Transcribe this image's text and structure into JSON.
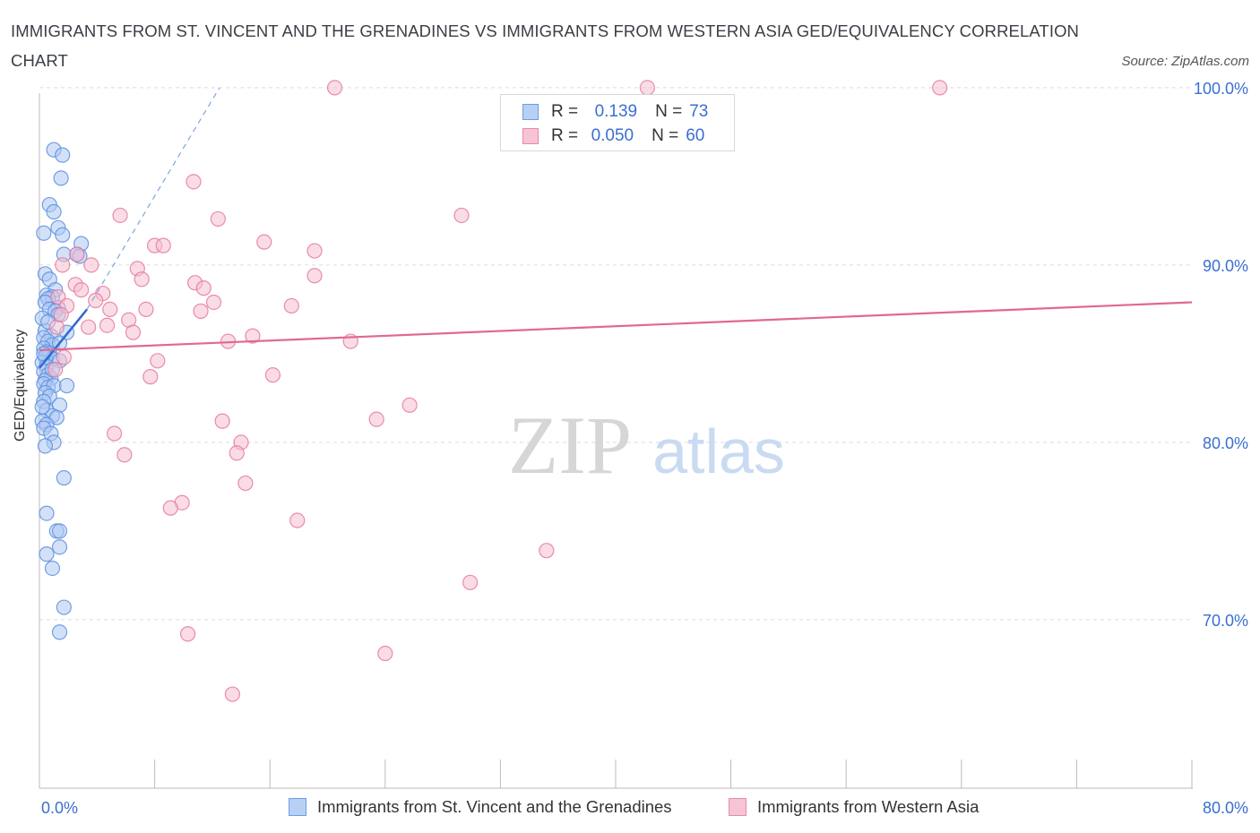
{
  "title": "IMMIGRANTS FROM ST. VINCENT AND THE GRENADINES VS IMMIGRANTS FROM WESTERN ASIA GED/EQUIVALENCY CORRELATION CHART",
  "source": "Source: ZipAtlas.com",
  "watermark": {
    "zip": "ZIP",
    "atlas": "atlas"
  },
  "legend": {
    "r_label": "R =",
    "n_label": "N =",
    "rows": [
      {
        "r": "0.139",
        "n": "73",
        "color": "#6a9ee8",
        "fill": "#b8d0f4"
      },
      {
        "r": "0.050",
        "n": "60",
        "color": "#e78aa8",
        "fill": "#f7c4d4"
      }
    ]
  },
  "chart_data": {
    "type": "scatter",
    "ylabel": "GED/Equivalency",
    "xlim": [
      0,
      80
    ],
    "ylim": [
      60.5,
      100.5
    ],
    "y_ticks": [
      70,
      80,
      90,
      100
    ],
    "y_tick_labels": [
      "70.0%",
      "80.0%",
      "90.0%",
      "100.0%"
    ],
    "x_tick_labels": [
      "0.0%",
      "80.0%"
    ],
    "legend_position": "bottom",
    "series": [
      {
        "name": "Immigrants from St. Vincent and the Grenadines",
        "color": "#5b8fe0",
        "fill": "#aec8f2",
        "trend": {
          "x": [
            0,
            3.3
          ],
          "y": [
            84.2,
            87.5
          ],
          "dashed_extension": {
            "x": [
              3.3,
              12.5
            ],
            "y": [
              87.5,
              100
            ]
          }
        },
        "points": [
          [
            1.0,
            96.5
          ],
          [
            1.6,
            96.2
          ],
          [
            1.5,
            94.9
          ],
          [
            0.7,
            93.4
          ],
          [
            1.0,
            93.0
          ],
          [
            1.3,
            92.1
          ],
          [
            0.3,
            91.8
          ],
          [
            1.6,
            91.7
          ],
          [
            2.9,
            91.2
          ],
          [
            1.7,
            90.6
          ],
          [
            2.6,
            90.6
          ],
          [
            2.8,
            90.5
          ],
          [
            0.4,
            89.5
          ],
          [
            0.7,
            89.2
          ],
          [
            1.1,
            88.6
          ],
          [
            0.5,
            88.3
          ],
          [
            0.9,
            88.2
          ],
          [
            0.6,
            88.1
          ],
          [
            0.4,
            87.9
          ],
          [
            1.3,
            87.6
          ],
          [
            0.7,
            87.5
          ],
          [
            1.1,
            87.4
          ],
          [
            1.3,
            87.2
          ],
          [
            0.4,
            86.3
          ],
          [
            0.8,
            86.0
          ],
          [
            1.9,
            86.2
          ],
          [
            0.3,
            85.9
          ],
          [
            0.6,
            85.7
          ],
          [
            0.9,
            85.5
          ],
          [
            1.4,
            85.6
          ],
          [
            0.3,
            85.3
          ],
          [
            0.5,
            85.1
          ],
          [
            0.7,
            85.0
          ],
          [
            0.4,
            84.8
          ],
          [
            0.9,
            84.7
          ],
          [
            1.4,
            84.6
          ],
          [
            0.2,
            84.5
          ],
          [
            0.5,
            84.3
          ],
          [
            0.3,
            84.0
          ],
          [
            0.6,
            83.8
          ],
          [
            0.8,
            83.6
          ],
          [
            0.4,
            83.5
          ],
          [
            0.3,
            83.3
          ],
          [
            0.6,
            83.1
          ],
          [
            1.0,
            83.2
          ],
          [
            1.9,
            83.2
          ],
          [
            0.4,
            82.8
          ],
          [
            0.7,
            82.6
          ],
          [
            0.3,
            82.3
          ],
          [
            1.4,
            82.1
          ],
          [
            0.5,
            81.8
          ],
          [
            0.9,
            81.5
          ],
          [
            1.2,
            81.4
          ],
          [
            0.2,
            81.2
          ],
          [
            0.5,
            81.0
          ],
          [
            0.3,
            80.8
          ],
          [
            0.8,
            80.5
          ],
          [
            1.0,
            80.0
          ],
          [
            0.4,
            79.8
          ],
          [
            1.7,
            78.0
          ],
          [
            0.5,
            76.0
          ],
          [
            1.2,
            75.0
          ],
          [
            1.4,
            75.0
          ],
          [
            1.4,
            74.1
          ],
          [
            0.5,
            73.7
          ],
          [
            0.9,
            72.9
          ],
          [
            1.7,
            70.7
          ],
          [
            1.4,
            69.3
          ],
          [
            0.2,
            87.0
          ],
          [
            0.6,
            86.8
          ],
          [
            0.2,
            82.0
          ],
          [
            0.9,
            84.1
          ],
          [
            0.3,
            85.0
          ]
        ]
      },
      {
        "name": "Immigrants from Western Asia",
        "color": "#e47a9c",
        "fill": "#f5bfd0",
        "trend": {
          "x": [
            0,
            80
          ],
          "y": [
            85.2,
            87.9
          ]
        },
        "points": [
          [
            20.5,
            100.0
          ],
          [
            42.2,
            100.0
          ],
          [
            62.5,
            100.0
          ],
          [
            10.7,
            94.7
          ],
          [
            5.6,
            92.8
          ],
          [
            12.4,
            92.6
          ],
          [
            29.3,
            92.8
          ],
          [
            8.0,
            91.1
          ],
          [
            8.6,
            91.1
          ],
          [
            15.6,
            91.3
          ],
          [
            19.1,
            90.8
          ],
          [
            2.6,
            90.6
          ],
          [
            1.6,
            90.0
          ],
          [
            3.6,
            90.0
          ],
          [
            6.8,
            89.8
          ],
          [
            7.1,
            89.2
          ],
          [
            10.8,
            89.0
          ],
          [
            11.4,
            88.7
          ],
          [
            19.1,
            89.4
          ],
          [
            2.5,
            88.9
          ],
          [
            2.9,
            88.6
          ],
          [
            4.4,
            88.4
          ],
          [
            1.3,
            88.2
          ],
          [
            3.9,
            88.0
          ],
          [
            12.1,
            87.9
          ],
          [
            1.9,
            87.7
          ],
          [
            4.9,
            87.5
          ],
          [
            7.4,
            87.5
          ],
          [
            11.2,
            87.4
          ],
          [
            17.5,
            87.7
          ],
          [
            6.2,
            86.9
          ],
          [
            1.2,
            86.5
          ],
          [
            3.4,
            86.5
          ],
          [
            4.7,
            86.6
          ],
          [
            6.5,
            86.2
          ],
          [
            14.8,
            86.0
          ],
          [
            13.1,
            85.7
          ],
          [
            21.6,
            85.7
          ],
          [
            1.7,
            84.8
          ],
          [
            8.2,
            84.6
          ],
          [
            1.1,
            84.1
          ],
          [
            7.7,
            83.7
          ],
          [
            16.2,
            83.8
          ],
          [
            25.7,
            82.1
          ],
          [
            12.7,
            81.2
          ],
          [
            23.4,
            81.3
          ],
          [
            5.2,
            80.5
          ],
          [
            14.0,
            80.0
          ],
          [
            13.7,
            79.4
          ],
          [
            5.9,
            79.3
          ],
          [
            14.3,
            77.7
          ],
          [
            9.9,
            76.6
          ],
          [
            9.1,
            76.3
          ],
          [
            17.9,
            75.6
          ],
          [
            35.2,
            73.9
          ],
          [
            29.9,
            72.1
          ],
          [
            10.3,
            69.2
          ],
          [
            24.0,
            68.1
          ],
          [
            13.4,
            65.8
          ],
          [
            1.5,
            87.2
          ]
        ]
      }
    ]
  }
}
